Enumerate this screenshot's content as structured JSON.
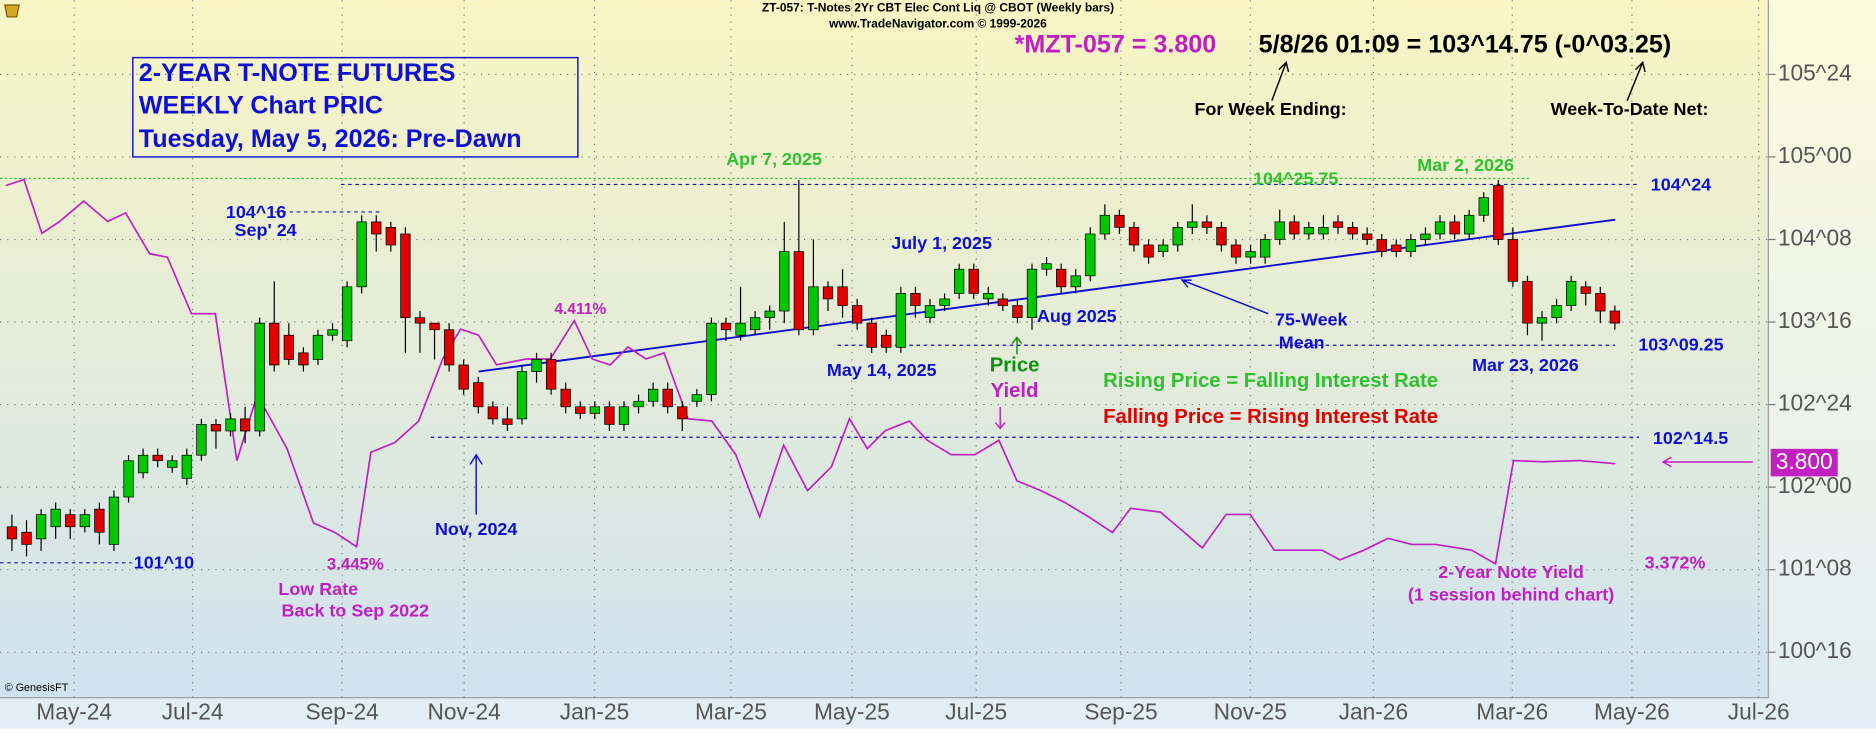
{
  "chart_data": {
    "type": "candlestick",
    "header": [
      "ZT-057:  T-Notes 2Yr CBT Elec Cont Liq @ CBOT  (Weekly bars)",
      "www.TradeNavigator.com © 1999-2026"
    ],
    "title_lines": [
      "2-YEAR T-NOTE FUTURES",
      "WEEKLY Chart PRIC",
      "Tuesday, May 5, 2026: Pre-Dawn"
    ],
    "quote": [
      "*MZT-057 = 3.800",
      "5/8/26 01:09 = 103^14.75 (-0^03.25)"
    ],
    "xlim": [
      -0.82,
      120.53
    ],
    "xticks": [
      {
        "value": 4.27,
        "label": "May-24"
      },
      {
        "value": 12.4,
        "label": "Jul-24"
      },
      {
        "value": 22.66,
        "label": "Sep-24"
      },
      {
        "value": 31.03,
        "label": "Nov-24"
      },
      {
        "value": 39.98,
        "label": "Jan-25"
      },
      {
        "value": 49.34,
        "label": "Mar-25"
      },
      {
        "value": 57.64,
        "label": "May-25"
      },
      {
        "value": 66.17,
        "label": "Jul-25"
      },
      {
        "value": 76.11,
        "label": "Sep-25"
      },
      {
        "value": 84.98,
        "label": "Nov-25"
      },
      {
        "value": 93.43,
        "label": "Jan-26"
      },
      {
        "value": 102.96,
        "label": "Mar-26"
      },
      {
        "value": 111.17,
        "label": "May-26"
      },
      {
        "value": 119.87,
        "label": "Jul-26"
      }
    ],
    "ylim": [
      100.087,
      106.424
    ],
    "yticks": [
      {
        "value": 100.5,
        "label": "100^16"
      },
      {
        "value": 101.25,
        "label": "101^08"
      },
      {
        "value": 102,
        "label": "102^00"
      },
      {
        "value": 102.75,
        "label": "102^24"
      },
      {
        "value": 103.5,
        "label": "103^16"
      },
      {
        "value": 104.25,
        "label": "104^08"
      },
      {
        "value": 105,
        "label": "105^00"
      },
      {
        "value": 105.75,
        "label": "105^24"
      }
    ],
    "grid": true,
    "up_color": "#00c800",
    "down_color": "#e00000",
    "ohlc": [
      [
        101.64,
        101.75,
        101.42,
        101.53
      ],
      [
        101.59,
        101.7,
        101.37,
        101.48
      ],
      [
        101.53,
        101.8,
        101.42,
        101.75
      ],
      [
        101.64,
        101.86,
        101.53,
        101.8
      ],
      [
        101.75,
        101.8,
        101.53,
        101.64
      ],
      [
        101.64,
        101.8,
        101.59,
        101.75
      ],
      [
        101.8,
        101.86,
        101.48,
        101.59
      ],
      [
        101.48,
        101.97,
        101.42,
        101.91
      ],
      [
        101.91,
        102.29,
        101.86,
        102.24
      ],
      [
        102.13,
        102.35,
        102.08,
        102.29
      ],
      [
        102.29,
        102.35,
        102.18,
        102.24
      ],
      [
        102.18,
        102.29,
        102.13,
        102.24
      ],
      [
        102.08,
        102.35,
        102.02,
        102.29
      ],
      [
        102.29,
        102.62,
        102.24,
        102.57
      ],
      [
        102.57,
        102.62,
        102.35,
        102.51
      ],
      [
        102.51,
        102.67,
        102.46,
        102.62
      ],
      [
        102.62,
        102.73,
        102.4,
        102.51
      ],
      [
        102.51,
        103.54,
        102.46,
        103.49
      ],
      [
        103.49,
        103.87,
        103.05,
        103.11
      ],
      [
        103.38,
        103.49,
        103.11,
        103.16
      ],
      [
        103.22,
        103.27,
        103.05,
        103.11
      ],
      [
        103.16,
        103.43,
        103.11,
        103.38
      ],
      [
        103.38,
        103.49,
        103.33,
        103.43
      ],
      [
        103.33,
        103.87,
        103.27,
        103.82
      ],
      [
        103.82,
        104.47,
        103.76,
        104.41
      ],
      [
        104.41,
        104.47,
        104.14,
        104.3
      ],
      [
        104.36,
        104.41,
        104.14,
        104.2
      ],
      [
        104.3,
        104.36,
        103.22,
        103.54
      ],
      [
        103.54,
        103.6,
        103.22,
        103.49
      ],
      [
        103.49,
        103.49,
        103.16,
        103.43
      ],
      [
        103.43,
        103.49,
        103.05,
        103.11
      ],
      [
        103.11,
        103.16,
        102.84,
        102.89
      ],
      [
        102.95,
        103.0,
        102.67,
        102.73
      ],
      [
        102.73,
        102.78,
        102.57,
        102.62
      ],
      [
        102.62,
        102.73,
        102.51,
        102.57
      ],
      [
        102.62,
        103.11,
        102.57,
        103.05
      ],
      [
        103.05,
        103.22,
        102.95,
        103.16
      ],
      [
        103.16,
        103.22,
        102.84,
        102.89
      ],
      [
        102.89,
        102.95,
        102.67,
        102.73
      ],
      [
        102.73,
        102.78,
        102.62,
        102.67
      ],
      [
        102.67,
        102.78,
        102.62,
        102.73
      ],
      [
        102.73,
        102.78,
        102.51,
        102.57
      ],
      [
        102.57,
        102.78,
        102.51,
        102.73
      ],
      [
        102.73,
        102.84,
        102.67,
        102.78
      ],
      [
        102.78,
        102.95,
        102.73,
        102.89
      ],
      [
        102.89,
        102.95,
        102.67,
        102.73
      ],
      [
        102.73,
        102.78,
        102.51,
        102.62
      ],
      [
        102.78,
        102.89,
        102.73,
        102.84
      ],
      [
        102.84,
        103.54,
        102.78,
        103.49
      ],
      [
        103.49,
        103.54,
        103.33,
        103.43
      ],
      [
        103.38,
        103.82,
        103.33,
        103.49
      ],
      [
        103.43,
        103.6,
        103.38,
        103.54
      ],
      [
        103.54,
        103.65,
        103.43,
        103.6
      ],
      [
        103.6,
        104.41,
        103.49,
        104.14
      ],
      [
        104.14,
        104.79,
        103.38,
        103.43
      ],
      [
        103.43,
        104.25,
        103.38,
        103.82
      ],
      [
        103.82,
        103.87,
        103.6,
        103.71
      ],
      [
        103.82,
        103.98,
        103.54,
        103.65
      ],
      [
        103.65,
        103.71,
        103.43,
        103.49
      ],
      [
        103.49,
        103.54,
        103.22,
        103.27
      ],
      [
        103.38,
        103.43,
        103.22,
        103.27
      ],
      [
        103.27,
        103.82,
        103.22,
        103.76
      ],
      [
        103.76,
        103.82,
        103.54,
        103.65
      ],
      [
        103.54,
        103.71,
        103.49,
        103.65
      ],
      [
        103.65,
        103.76,
        103.6,
        103.71
      ],
      [
        103.76,
        104.03,
        103.71,
        103.98
      ],
      [
        103.98,
        104.03,
        103.71,
        103.76
      ],
      [
        103.71,
        103.82,
        103.65,
        103.76
      ],
      [
        103.71,
        103.76,
        103.6,
        103.65
      ],
      [
        103.65,
        103.71,
        103.49,
        103.54
      ],
      [
        103.54,
        104.03,
        103.43,
        103.98
      ],
      [
        103.98,
        104.09,
        103.92,
        104.03
      ],
      [
        103.98,
        104.03,
        103.76,
        103.82
      ],
      [
        103.82,
        103.98,
        103.76,
        103.92
      ],
      [
        103.92,
        104.36,
        103.87,
        104.3
      ],
      [
        104.3,
        104.57,
        104.25,
        104.47
      ],
      [
        104.47,
        104.52,
        104.3,
        104.36
      ],
      [
        104.36,
        104.41,
        104.14,
        104.2
      ],
      [
        104.2,
        104.25,
        104.03,
        104.09
      ],
      [
        104.14,
        104.25,
        104.09,
        104.2
      ],
      [
        104.2,
        104.41,
        104.14,
        104.36
      ],
      [
        104.36,
        104.57,
        104.3,
        104.41
      ],
      [
        104.41,
        104.47,
        104.3,
        104.36
      ],
      [
        104.36,
        104.41,
        104.14,
        104.2
      ],
      [
        104.2,
        104.25,
        104.03,
        104.09
      ],
      [
        104.09,
        104.2,
        104.03,
        104.14
      ],
      [
        104.09,
        104.3,
        104.03,
        104.25
      ],
      [
        104.25,
        104.52,
        104.2,
        104.41
      ],
      [
        104.41,
        104.47,
        104.25,
        104.3
      ],
      [
        104.3,
        104.41,
        104.25,
        104.36
      ],
      [
        104.3,
        104.47,
        104.25,
        104.36
      ],
      [
        104.41,
        104.47,
        104.3,
        104.36
      ],
      [
        104.36,
        104.41,
        104.25,
        104.3
      ],
      [
        104.3,
        104.36,
        104.2,
        104.25
      ],
      [
        104.25,
        104.3,
        104.09,
        104.14
      ],
      [
        104.2,
        104.25,
        104.09,
        104.14
      ],
      [
        104.14,
        104.3,
        104.09,
        104.25
      ],
      [
        104.25,
        104.36,
        104.2,
        104.3
      ],
      [
        104.3,
        104.47,
        104.25,
        104.41
      ],
      [
        104.41,
        104.47,
        104.25,
        104.3
      ],
      [
        104.3,
        104.52,
        104.25,
        104.47
      ],
      [
        104.47,
        104.68,
        104.41,
        104.63
      ],
      [
        104.74,
        104.79,
        104.2,
        104.25
      ],
      [
        104.25,
        104.36,
        103.82,
        103.87
      ],
      [
        103.87,
        103.92,
        103.38,
        103.49
      ],
      [
        103.49,
        103.6,
        103.33,
        103.54
      ],
      [
        103.54,
        103.71,
        103.49,
        103.65
      ],
      [
        103.65,
        103.92,
        103.6,
        103.87
      ],
      [
        103.82,
        103.87,
        103.65,
        103.76
      ],
      [
        103.76,
        103.82,
        103.49,
        103.6
      ],
      [
        103.6,
        103.65,
        103.43,
        103.49
      ]
    ],
    "y2lim": [
      2.8,
      5.78
    ],
    "series": [
      {
        "name": "2-Year Note Yield",
        "color": "#c020c0",
        "axis": "y2",
        "x": [
          -0.41,
          0.82,
          2.05,
          3.28,
          4.93,
          6.57,
          7.8,
          9.44,
          10.67,
          12.32,
          13.96,
          15.44,
          16.83,
          18.88,
          20.69,
          22.17,
          23.65,
          24.63,
          26.27,
          27.91,
          29.56,
          30.79,
          32.02,
          33.25,
          35.3,
          36.95,
          38.59,
          39.82,
          41.05,
          42.28,
          43.51,
          44.75,
          46.39,
          48.03,
          49.67,
          51.31,
          52.96,
          54.6,
          56.24,
          57.47,
          58.7,
          59.93,
          61.58,
          62.81,
          64.45,
          66.09,
          67.73,
          68.97,
          70.61,
          72.25,
          73.89,
          75.53,
          76.77,
          78.82,
          80.46,
          81.69,
          83.33,
          84.98,
          86.62,
          88.26,
          89.9,
          91.13,
          92.78,
          94.42,
          96.06,
          97.7,
          100.16,
          101.81,
          103.04,
          105.09,
          107.55,
          110.02
        ],
        "values": [
          4.988,
          5.014,
          4.784,
          4.835,
          4.922,
          4.835,
          4.871,
          4.697,
          4.682,
          4.441,
          4.441,
          3.813,
          4.094,
          3.864,
          3.547,
          3.506,
          3.445,
          3.849,
          3.89,
          3.982,
          4.247,
          4.375,
          4.349,
          4.222,
          4.247,
          4.247,
          4.411,
          4.247,
          4.222,
          4.298,
          4.247,
          4.273,
          3.992,
          3.982,
          3.838,
          3.573,
          3.879,
          3.685,
          3.787,
          3.992,
          3.864,
          3.941,
          3.982,
          3.9,
          3.838,
          3.838,
          3.9,
          3.726,
          3.685,
          3.634,
          3.573,
          3.506,
          3.609,
          3.593,
          3.506,
          3.44,
          3.583,
          3.583,
          3.43,
          3.43,
          3.43,
          3.389,
          3.43,
          3.481,
          3.455,
          3.455,
          3.43,
          3.372,
          3.813,
          3.808,
          3.813,
          3.8
        ]
      }
    ],
    "series_note": "(1 session behind chart)",
    "yield_marker_label": "3.800",
    "trendline": {
      "label": [
        "75-Week",
        "Mean"
      ],
      "color": "#1010d0",
      "x": [
        32.02,
        110.02
      ],
      "values": [
        103.05,
        104.43
      ]
    },
    "levels": [
      {
        "value": 104.8047,
        "label": "104^25.75",
        "color": "#30c030"
      },
      {
        "value": 104.75,
        "label": "104^24",
        "color": "#1010d0"
      },
      {
        "value": 104.5,
        "label": "104^16",
        "color": "#1010d0"
      },
      {
        "value": 103.2891,
        "label": "103^09.25",
        "color": "#1010d0"
      },
      {
        "value": 102.4531,
        "label": "102^14.5",
        "color": "#1010d0"
      },
      {
        "value": 101.3125,
        "label": "101^10",
        "color": "#1010d0"
      }
    ],
    "annotations": [
      {
        "text": "Apr 7, 2025",
        "color": "#30c030"
      },
      {
        "text": "Mar 2, 2026",
        "color": "#30c030"
      },
      {
        "text": "July 1, 2025",
        "color": "#1010d0"
      },
      {
        "text": "Aug 2025",
        "color": "#1010d0"
      },
      {
        "text": "May 14, 2025",
        "color": "#1010d0"
      },
      {
        "text": "Price",
        "color": "#109010"
      },
      {
        "text": "Yield",
        "color": "#c020c0"
      },
      {
        "text": "Rising Price = Falling Interest Rate",
        "color": "#30c030"
      },
      {
        "text": "Falling Price = Rising Interest Rate",
        "color": "#e00000"
      },
      {
        "text": "Mar 23, 2026",
        "color": "#1010d0"
      },
      {
        "text": "4.411%",
        "color": "#c020c0"
      },
      {
        "text": "Nov, 2024",
        "color": "#1010d0"
      },
      {
        "text": "3.445%",
        "color": "#c020c0"
      },
      {
        "text": "Low Rate",
        "color": "#c020c0"
      },
      {
        "text": "Back to Sep 2022",
        "color": "#c020c0"
      },
      {
        "text": "3.372%",
        "color": "#c020c0"
      },
      {
        "text": "For Week Ending:",
        "color": "#000000"
      },
      {
        "text": "Week-To-Date Net:",
        "color": "#000000"
      },
      {
        "text": "Sep' 24",
        "color": "#1010d0"
      },
      {
        "text": "© GenesisFT",
        "color": "#000000"
      }
    ]
  }
}
